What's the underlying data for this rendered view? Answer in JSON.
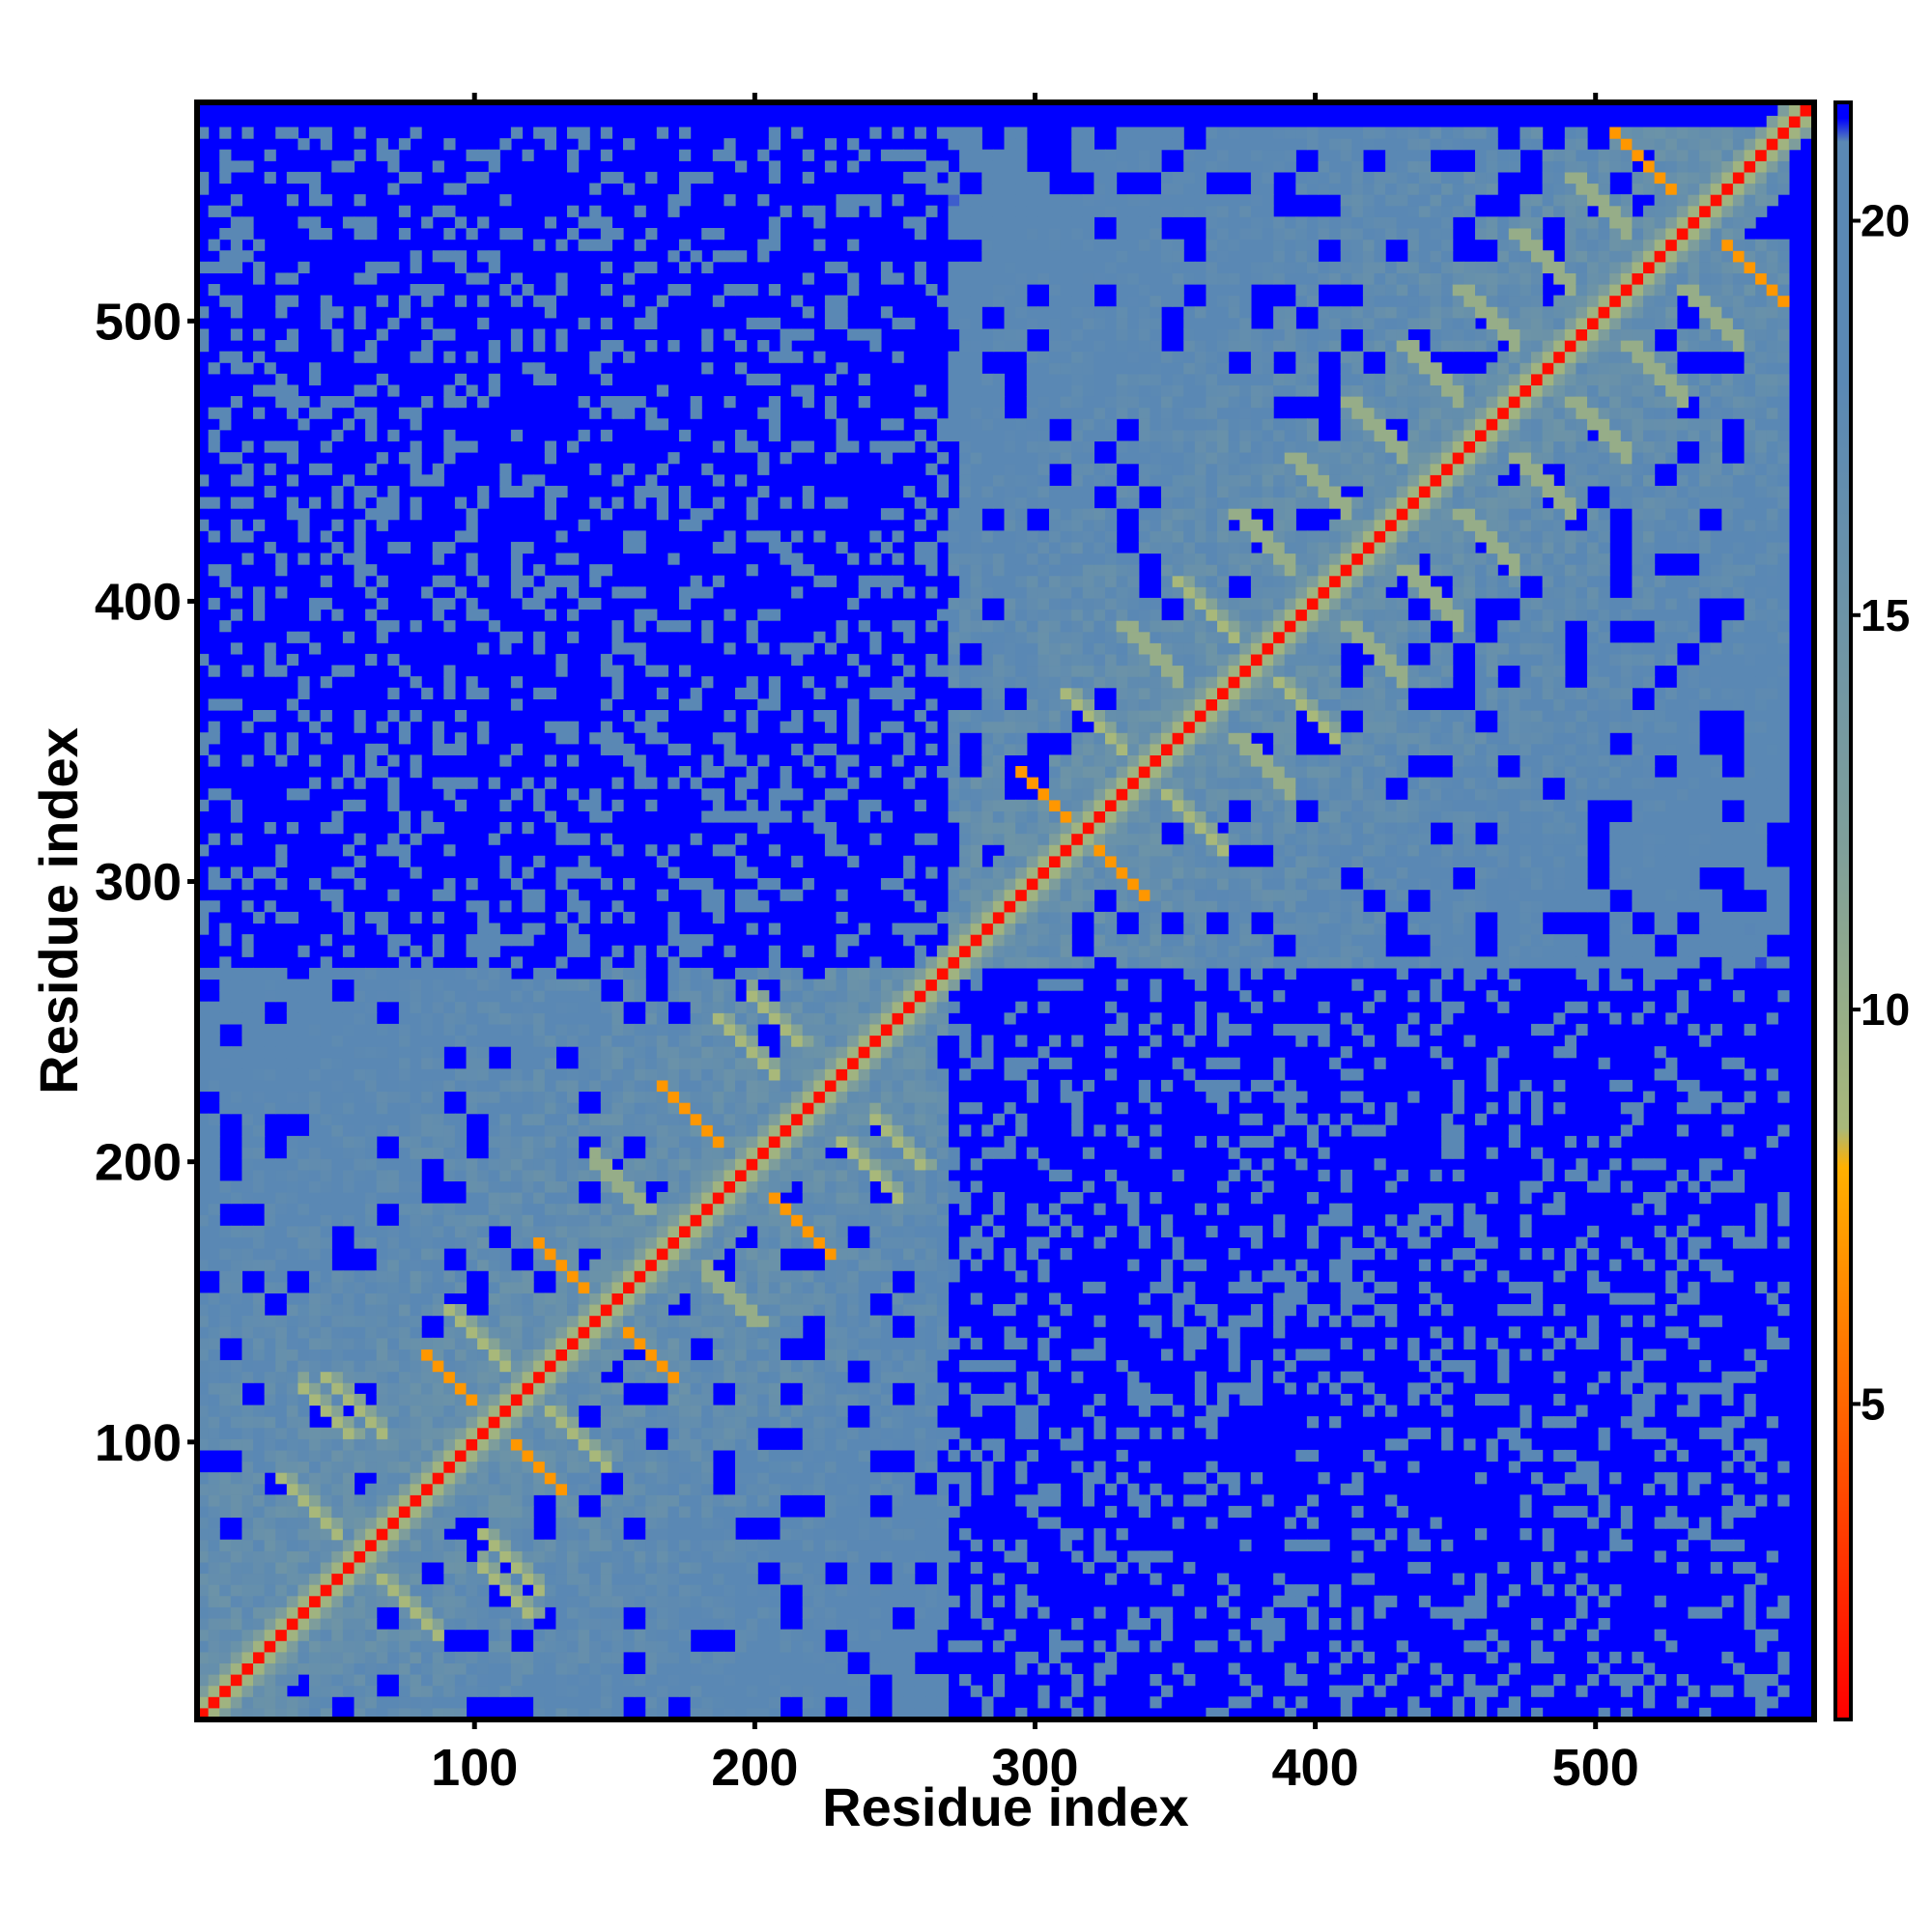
{
  "chart_data": {
    "type": "heatmap",
    "title": "",
    "xlabel": "Residue index",
    "ylabel": "Residue index",
    "xlim": [
      1,
      578
    ],
    "ylim": [
      1,
      578
    ],
    "x_ticks": [
      100,
      200,
      300,
      400,
      500
    ],
    "y_ticks": [
      100,
      200,
      300,
      400,
      500
    ],
    "x_tick_labels": [
      "100",
      "200",
      "300",
      "400",
      "500"
    ],
    "y_tick_labels": [
      "100",
      "200",
      "300",
      "400",
      "500"
    ],
    "colorbar": {
      "range": [
        1,
        21.5
      ],
      "ticks": [
        5,
        10,
        15,
        20
      ],
      "tick_labels": [
        "5",
        "10",
        "15",
        "20"
      ],
      "stops": [
        {
          "value": 1,
          "color": "#ff0000"
        },
        {
          "value": 5,
          "color": "#ff6600"
        },
        {
          "value": 8,
          "color": "#ffb000"
        },
        {
          "value": 8.5,
          "color": "#a8b87a"
        },
        {
          "value": 12,
          "color": "#7f9f9a"
        },
        {
          "value": 18,
          "color": "#5a88b4"
        },
        {
          "value": 21,
          "color": "#5a88b4"
        },
        {
          "value": 21.3,
          "color": "#0000ff"
        }
      ]
    },
    "background_color": "#0000ff",
    "domains": [
      {
        "start": 1,
        "end": 265
      },
      {
        "start": 268,
        "end": 568
      }
    ],
    "secondary_structure_contacts": [
      {
        "a": 40,
        "b": 75
      },
      {
        "a": 55,
        "b": 112
      },
      {
        "a": 45,
        "b": 110
      },
      {
        "a": 90,
        "b": 120
      },
      {
        "a": 100,
        "b": 135
      },
      {
        "a": 130,
        "b": 160
      },
      {
        "a": 150,
        "b": 190
      },
      {
        "a": 175,
        "b": 215
      },
      {
        "a": 195,
        "b": 240
      },
      {
        "a": 205,
        "b": 250
      },
      {
        "a": 300,
        "b": 330
      },
      {
        "a": 320,
        "b": 355
      },
      {
        "a": 340,
        "b": 380
      },
      {
        "a": 360,
        "b": 395
      },
      {
        "a": 380,
        "b": 420
      },
      {
        "a": 400,
        "b": 440
      },
      {
        "a": 420,
        "b": 460
      },
      {
        "a": 440,
        "b": 480
      },
      {
        "a": 460,
        "b": 500
      },
      {
        "a": 480,
        "b": 520
      },
      {
        "a": 500,
        "b": 540
      },
      {
        "a": 515,
        "b": 555
      }
    ]
  }
}
